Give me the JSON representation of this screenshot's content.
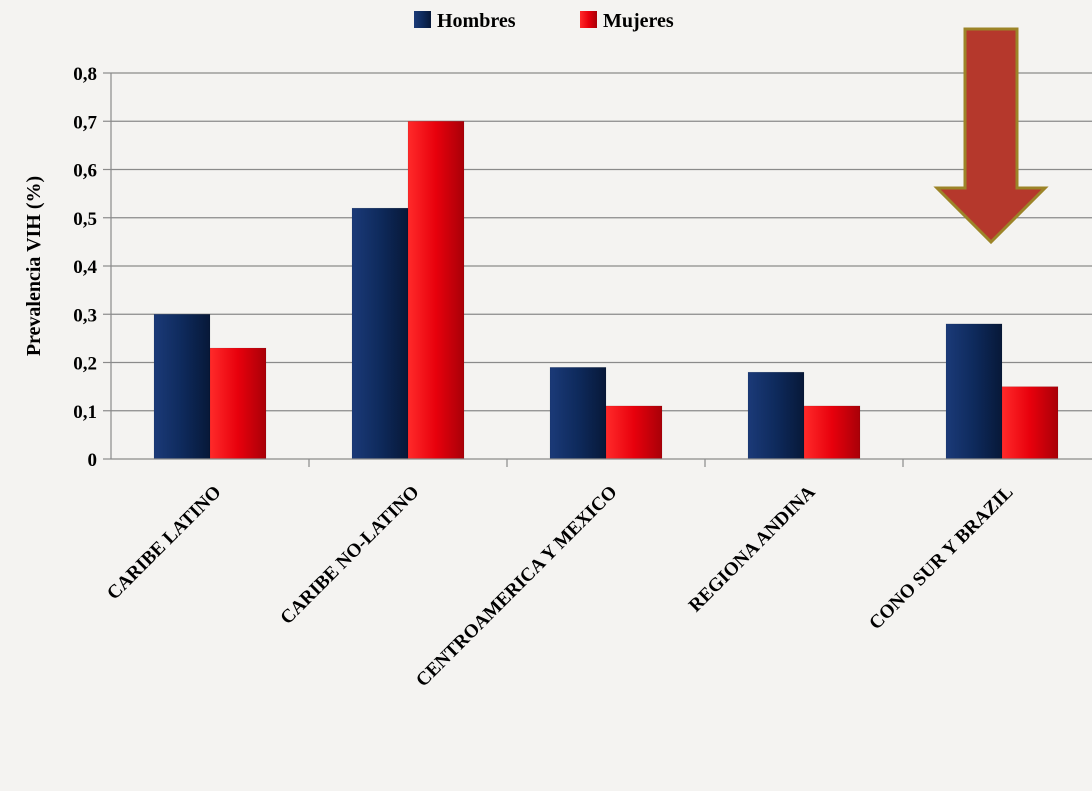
{
  "chart_data": {
    "type": "bar",
    "categories": [
      "CARIBE LATINO",
      "CARIBE NO-LATINO",
      "CENTROAMERICA Y MEXICO",
      "REGIONA ANDINA",
      "CONO SUR Y BRAZIL"
    ],
    "series": [
      {
        "name": "Hombres",
        "color": "#0e2a5c",
        "values": [
          0.3,
          0.52,
          0.19,
          0.18,
          0.28
        ]
      },
      {
        "name": "Mujeres",
        "color": "#e8000c",
        "values": [
          0.23,
          0.7,
          0.11,
          0.11,
          0.15
        ]
      }
    ],
    "ylabel": "Prevalencia VIH (%)",
    "xlabel": "",
    "ylim": [
      0,
      0.8
    ],
    "yticks": [
      "0",
      "0,1",
      "0,2",
      "0,3",
      "0,4",
      "0,5",
      "0,6",
      "0,7",
      "0,8"
    ],
    "grid": true,
    "legend_position": "top-center",
    "annotation": {
      "type": "down-arrow",
      "target_category": "CONO SUR Y BRAZIL",
      "color": "#b5382c"
    }
  }
}
